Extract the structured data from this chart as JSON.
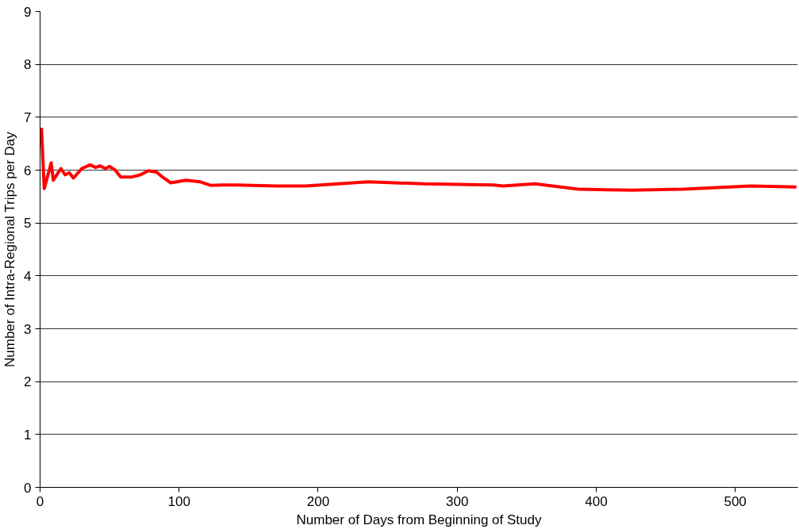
{
  "chart_data": {
    "type": "line",
    "xlabel": "Number of Days from Beginning of Study",
    "ylabel": "Number of Intra-Regional Trips per Day",
    "xlim": [
      0,
      545
    ],
    "xticks": [
      0,
      100,
      200,
      300,
      400,
      500
    ],
    "ylim": [
      0,
      9
    ],
    "yticks": [
      0,
      1,
      2,
      3,
      4,
      5,
      6,
      7,
      8,
      9
    ],
    "grid": "y",
    "marker": "none",
    "line_style": "solid",
    "series": [
      {
        "color": "#ff0000",
        "x": [
          1,
          3,
          8,
          9.5,
          15,
          18,
          21,
          24,
          30,
          36,
          40,
          43,
          47,
          50,
          54,
          58,
          66,
          72,
          78,
          84,
          88,
          94,
          105,
          115,
          123,
          131,
          141,
          170,
          191,
          236,
          276,
          326,
          333,
          356,
          387,
          426,
          463,
          511,
          544
        ],
        "values": [
          6.8,
          5.65,
          6.14,
          5.81,
          6.03,
          5.91,
          5.95,
          5.85,
          6.03,
          6.1,
          6.05,
          6.08,
          6.03,
          6.07,
          6.0,
          5.87,
          5.87,
          5.91,
          5.99,
          5.96,
          5.87,
          5.76,
          5.81,
          5.78,
          5.71,
          5.72,
          5.72,
          5.7,
          5.7,
          5.78,
          5.74,
          5.72,
          5.7,
          5.74,
          5.64,
          5.62,
          5.64,
          5.7,
          5.68
        ]
      }
    ]
  }
}
